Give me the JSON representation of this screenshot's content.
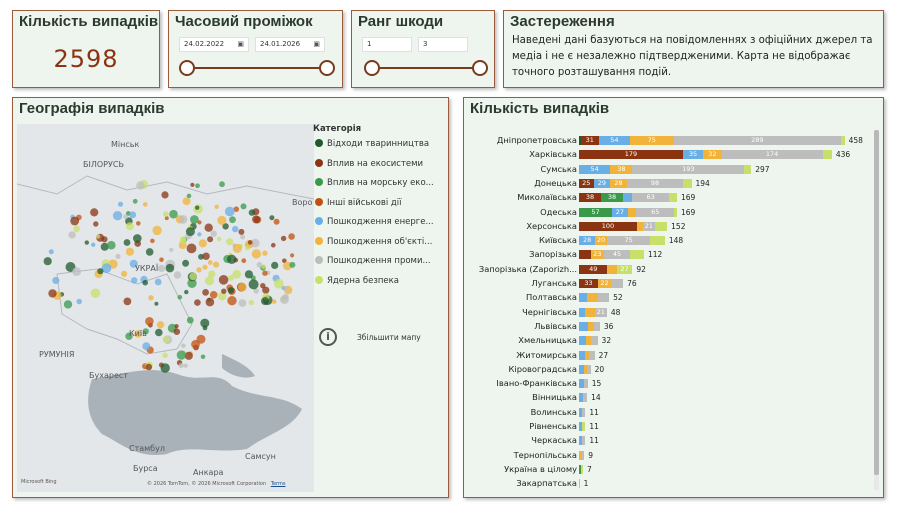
{
  "count_card": {
    "title": "Кількість випадків",
    "value": "2598"
  },
  "time_card": {
    "title": "Часовий проміжок",
    "from": "24.02.2022",
    "to": "24.01.2026",
    "cal_icon": "calendar-icon"
  },
  "damage_card": {
    "title": "Ранг шкоди",
    "from": "1",
    "to": "3"
  },
  "warning_card": {
    "title": "Застереження",
    "text": "Наведені дані базуються на повідомленнях з офіційних джерел та медіа і не є незалежно підтвердженими. Карта не відображає точного розташування подій."
  },
  "map_card": {
    "title": "Географія випадків",
    "legend_title": "Категорія",
    "legend": [
      {
        "label": "Відходи тваринництва",
        "color": "#1f5a2c"
      },
      {
        "label": "Вплив на екосистеми",
        "color": "#8a3412"
      },
      {
        "label": "Вплив на морську еко...",
        "color": "#3a9a4a"
      },
      {
        "label": "Інші військові дії",
        "color": "#c4500f"
      },
      {
        "label": "Пошкодження енерге...",
        "color": "#6aaee6"
      },
      {
        "label": "Пошкодження об'єкті...",
        "color": "#f2b33a"
      },
      {
        "label": "Пошкодження проми...",
        "color": "#bdbdbd"
      },
      {
        "label": "Ядерна безпека",
        "color": "#c8e06a"
      }
    ],
    "zoom_label": "Збільшити мапу",
    "map_labels": [
      "Мінськ",
      "БІЛОРУСЬ",
      "УКРАЇ",
      "Київ",
      "РУМУНІЯ",
      "Бухарест",
      "Стамбул",
      "Анкара",
      "Бурса",
      "Самсун",
      "Воро"
    ],
    "attribution": "© 2026 TomTom, © 2026 Microsoft Corporation",
    "terms": "Terms",
    "bing": "Microsoft Bing"
  },
  "bar_card": {
    "title": "Кількість випадків",
    "rows": [
      {
        "region": "Дніпропетровська",
        "total": "458",
        "segs": [
          {
            "v": 3,
            "c": "#1f5a2c",
            "l": ""
          },
          {
            "v": 31,
            "c": "#8a3412",
            "l": "31"
          },
          {
            "v": 54,
            "c": "#6aaee6",
            "l": "54"
          },
          {
            "v": 75,
            "c": "#f2b33a",
            "l": "75"
          },
          {
            "v": 289,
            "c": "#bdbdbd",
            "l": "289"
          },
          {
            "v": 6,
            "c": "#c8e06a",
            "l": ""
          }
        ]
      },
      {
        "region": "Харківська",
        "total": "436",
        "segs": [
          {
            "v": 179,
            "c": "#8a3412",
            "l": "179"
          },
          {
            "v": 35,
            "c": "#6aaee6",
            "l": "35"
          },
          {
            "v": 32,
            "c": "#f2b33a",
            "l": "32"
          },
          {
            "v": 174,
            "c": "#bdbdbd",
            "l": "174"
          },
          {
            "v": 16,
            "c": "#c8e06a",
            "l": ""
          }
        ]
      },
      {
        "region": "Сумська",
        "total": "297",
        "segs": [
          {
            "v": 54,
            "c": "#6aaee6",
            "l": "54"
          },
          {
            "v": 38,
            "c": "#f2b33a",
            "l": "38"
          },
          {
            "v": 193,
            "c": "#bdbdbd",
            "l": "193"
          },
          {
            "v": 12,
            "c": "#c8e06a",
            "l": ""
          }
        ]
      },
      {
        "region": "Донецька",
        "total": "194",
        "segs": [
          {
            "v": 25,
            "c": "#8a3412",
            "l": "25"
          },
          {
            "v": 29,
            "c": "#6aaee6",
            "l": "29"
          },
          {
            "v": 28,
            "c": "#f2b33a",
            "l": "28"
          },
          {
            "v": 98,
            "c": "#bdbdbd",
            "l": "98"
          },
          {
            "v": 14,
            "c": "#c8e06a",
            "l": ""
          }
        ]
      },
      {
        "region": "Миколаївська",
        "total": "169",
        "segs": [
          {
            "v": 38,
            "c": "#8a3412",
            "l": "38"
          },
          {
            "v": 38,
            "c": "#3a9a4a",
            "l": "38"
          },
          {
            "v": 16,
            "c": "#6aaee6",
            "l": ""
          },
          {
            "v": 63,
            "c": "#bdbdbd",
            "l": "63"
          },
          {
            "v": 14,
            "c": "#c8e06a",
            "l": ""
          }
        ]
      },
      {
        "region": "Одеська",
        "total": "169",
        "segs": [
          {
            "v": 57,
            "c": "#3a9a4a",
            "l": "57"
          },
          {
            "v": 27,
            "c": "#6aaee6",
            "l": "27"
          },
          {
            "v": 15,
            "c": "#f2b33a",
            "l": ""
          },
          {
            "v": 65,
            "c": "#bdbdbd",
            "l": "65"
          },
          {
            "v": 5,
            "c": "#c8e06a",
            "l": ""
          }
        ]
      },
      {
        "region": "Херсонська",
        "total": "152",
        "segs": [
          {
            "v": 100,
            "c": "#8a3412",
            "l": "100"
          },
          {
            "v": 10,
            "c": "#f2b33a",
            "l": ""
          },
          {
            "v": 21,
            "c": "#bdbdbd",
            "l": "21"
          },
          {
            "v": 21,
            "c": "#c8e06a",
            "l": ""
          }
        ]
      },
      {
        "region": "Київська",
        "total": "148",
        "segs": [
          {
            "v": 28,
            "c": "#6aaee6",
            "l": "28"
          },
          {
            "v": 20,
            "c": "#f2b33a",
            "l": "20"
          },
          {
            "v": 75,
            "c": "#bdbdbd",
            "l": "75"
          },
          {
            "v": 25,
            "c": "#c8e06a",
            "l": ""
          }
        ]
      },
      {
        "region": "Запорізька",
        "total": "112",
        "segs": [
          {
            "v": 20,
            "c": "#8a3412",
            "l": ""
          },
          {
            "v": 23,
            "c": "#f2b33a",
            "l": "23"
          },
          {
            "v": 45,
            "c": "#bdbdbd",
            "l": "45"
          },
          {
            "v": 24,
            "c": "#c8e06a",
            "l": ""
          }
        ]
      },
      {
        "region": "Запорізька (Zaporizhzhia)",
        "total": "92",
        "segs": [
          {
            "v": 49,
            "c": "#8a3412",
            "l": "49"
          },
          {
            "v": 16,
            "c": "#f2b33a",
            "l": ""
          },
          {
            "v": 27,
            "c": "#c8e06a",
            "l": "27"
          }
        ]
      },
      {
        "region": "Луганська",
        "total": "76",
        "segs": [
          {
            "v": 33,
            "c": "#8a3412",
            "l": "33"
          },
          {
            "v": 22,
            "c": "#f2b33a",
            "l": "22"
          },
          {
            "v": 21,
            "c": "#bdbdbd",
            "l": ""
          }
        ]
      },
      {
        "region": "Полтавська",
        "total": "52",
        "segs": [
          {
            "v": 14,
            "c": "#6aaee6",
            "l": ""
          },
          {
            "v": 18,
            "c": "#f2b33a",
            "l": ""
          },
          {
            "v": 20,
            "c": "#bdbdbd",
            "l": ""
          }
        ]
      },
      {
        "region": "Чернігівська",
        "total": "48",
        "segs": [
          {
            "v": 10,
            "c": "#6aaee6",
            "l": ""
          },
          {
            "v": 17,
            "c": "#f2b33a",
            "l": ""
          },
          {
            "v": 21,
            "c": "#bdbdbd",
            "l": "21"
          }
        ]
      },
      {
        "region": "Львівська",
        "total": "36",
        "segs": [
          {
            "v": 16,
            "c": "#6aaee6",
            "l": ""
          },
          {
            "v": 10,
            "c": "#f2b33a",
            "l": ""
          },
          {
            "v": 10,
            "c": "#bdbdbd",
            "l": ""
          }
        ]
      },
      {
        "region": "Хмельницька",
        "total": "32",
        "segs": [
          {
            "v": 12,
            "c": "#6aaee6",
            "l": ""
          },
          {
            "v": 8,
            "c": "#f2b33a",
            "l": ""
          },
          {
            "v": 12,
            "c": "#bdbdbd",
            "l": ""
          }
        ]
      },
      {
        "region": "Житомирська",
        "total": "27",
        "segs": [
          {
            "v": 10,
            "c": "#6aaee6",
            "l": ""
          },
          {
            "v": 7,
            "c": "#f2b33a",
            "l": ""
          },
          {
            "v": 10,
            "c": "#bdbdbd",
            "l": ""
          }
        ]
      },
      {
        "region": "Кіровоградська",
        "total": "20",
        "segs": [
          {
            "v": 8,
            "c": "#6aaee6",
            "l": ""
          },
          {
            "v": 5,
            "c": "#f2b33a",
            "l": ""
          },
          {
            "v": 7,
            "c": "#bdbdbd",
            "l": ""
          }
        ]
      },
      {
        "region": "Івано-Франківська",
        "total": "15",
        "segs": [
          {
            "v": 8,
            "c": "#6aaee6",
            "l": ""
          },
          {
            "v": 7,
            "c": "#bdbdbd",
            "l": ""
          }
        ]
      },
      {
        "region": "Вінницька",
        "total": "14",
        "segs": [
          {
            "v": 7,
            "c": "#6aaee6",
            "l": ""
          },
          {
            "v": 7,
            "c": "#bdbdbd",
            "l": ""
          }
        ]
      },
      {
        "region": "Волинська",
        "total": "11",
        "segs": [
          {
            "v": 6,
            "c": "#6aaee6",
            "l": ""
          },
          {
            "v": 5,
            "c": "#bdbdbd",
            "l": ""
          }
        ]
      },
      {
        "region": "Рівненська",
        "total": "11",
        "segs": [
          {
            "v": 5,
            "c": "#6aaee6",
            "l": ""
          },
          {
            "v": 6,
            "c": "#c8e06a",
            "l": ""
          }
        ]
      },
      {
        "region": "Черкаська",
        "total": "11",
        "segs": [
          {
            "v": 6,
            "c": "#6aaee6",
            "l": ""
          },
          {
            "v": 5,
            "c": "#bdbdbd",
            "l": ""
          }
        ]
      },
      {
        "region": "Тернопільська",
        "total": "9",
        "segs": [
          {
            "v": 5,
            "c": "#f2b33a",
            "l": ""
          },
          {
            "v": 4,
            "c": "#bdbdbd",
            "l": ""
          }
        ]
      },
      {
        "region": "Україна в цілому",
        "total": "7",
        "segs": [
          {
            "v": 4,
            "c": "#3a9a4a",
            "l": ""
          },
          {
            "v": 3,
            "c": "#c8e06a",
            "l": ""
          }
        ]
      },
      {
        "region": "Закарпатська",
        "total": "1",
        "segs": [
          {
            "v": 1,
            "c": "#bdbdbd",
            "l": ""
          }
        ]
      }
    ]
  }
}
